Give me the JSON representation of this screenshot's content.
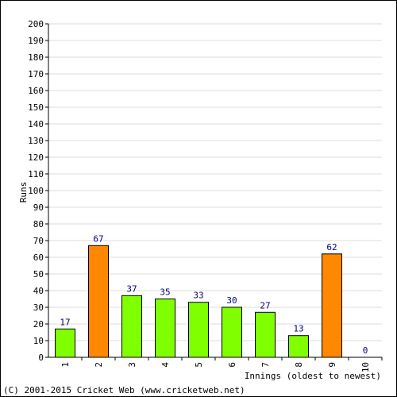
{
  "chart_data": {
    "type": "bar",
    "categories": [
      "1",
      "2",
      "3",
      "4",
      "5",
      "6",
      "7",
      "8",
      "9",
      "10"
    ],
    "values": [
      17,
      67,
      37,
      35,
      33,
      30,
      27,
      13,
      62,
      0
    ],
    "bar_colors": [
      "#80ff00",
      "#ff8800",
      "#80ff00",
      "#80ff00",
      "#80ff00",
      "#80ff00",
      "#80ff00",
      "#80ff00",
      "#ff8800",
      "#80ff00"
    ],
    "ylabel": "Runs",
    "xlabel": "Innings (oldest to newest)",
    "ylim": [
      0,
      200
    ],
    "ytick_step": 10,
    "grid": true,
    "legend": "none"
  },
  "footer": {
    "copyright": "(C) 2001-2015 Cricket Web (www.cricketweb.net)"
  },
  "colors": {
    "gridline": "#dddddd",
    "axis": "#000000",
    "bar_outline": "#000000",
    "data_label": "#000080"
  }
}
